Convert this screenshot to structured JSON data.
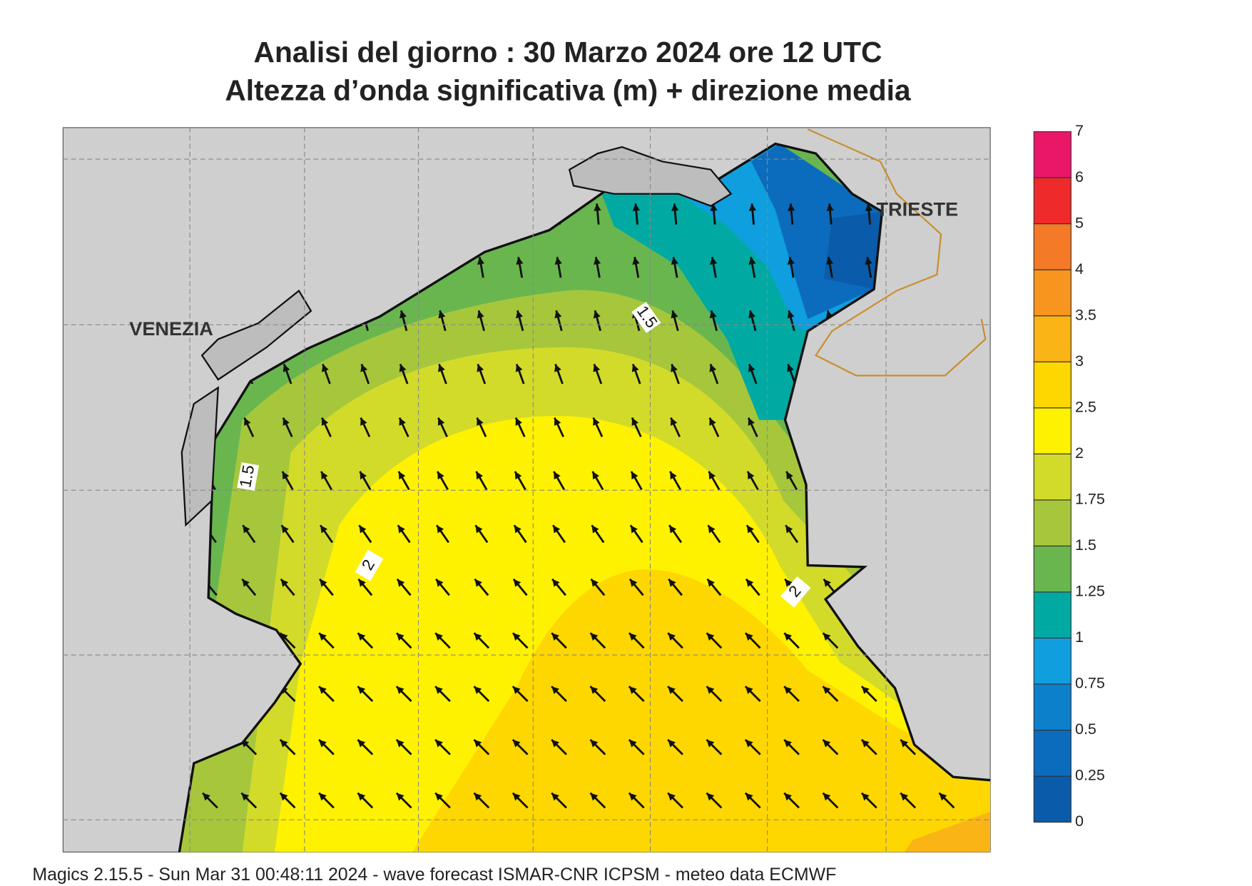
{
  "header": {
    "title": "Analisi del giorno :  30   Marzo   2024   ore 12 UTC",
    "subtitle": "Altezza d’onda significativa (m) + direzione media"
  },
  "map": {
    "places": [
      {
        "label": "VENEZIA"
      },
      {
        "label": "TRIESTE"
      }
    ],
    "contour_labels": [
      "1.5",
      "1.5",
      "2",
      "2"
    ]
  },
  "legend": {
    "levels": [
      0,
      0.25,
      0.5,
      0.75,
      1,
      1.25,
      1.5,
      1.75,
      2,
      2.5,
      3,
      3.5,
      4,
      5,
      6,
      7
    ],
    "colors": [
      "#0a5cab",
      "#0b6cbd",
      "#0d80cc",
      "#0f9ede",
      "#00aaa2",
      "#69b64f",
      "#a6c73b",
      "#d3db2a",
      "#fff200",
      "#ffd700",
      "#fbb416",
      "#f7951f",
      "#f47a27",
      "#ee2a2a",
      "#ea1668"
    ]
  },
  "footer": "Magics 2.15.5 - Sun Mar 31 00:48:11 2024 - wave forecast  ISMAR-CNR  ICPSM - meteo data    ECMWF"
}
